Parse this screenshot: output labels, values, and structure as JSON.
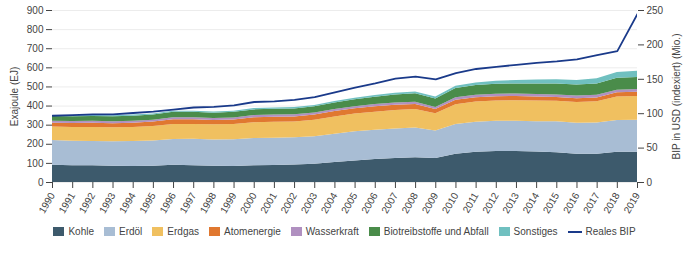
{
  "chart_data": {
    "type": "area",
    "stacked": true,
    "x": [
      1990,
      1991,
      1992,
      1993,
      1994,
      1995,
      1996,
      1997,
      1998,
      1999,
      2000,
      2001,
      2002,
      2003,
      2004,
      2005,
      2006,
      2007,
      2008,
      2009,
      2010,
      2011,
      2012,
      2013,
      2014,
      2015,
      2016,
      2017,
      2018,
      2019
    ],
    "xlim": [
      1990,
      2019
    ],
    "xticks": [
      1990,
      1991,
      1992,
      1993,
      1994,
      1995,
      1996,
      1997,
      1998,
      1999,
      2000,
      2001,
      2002,
      2003,
      2004,
      2005,
      2006,
      2007,
      2008,
      2009,
      2010,
      2011,
      2012,
      2013,
      2014,
      2015,
      2016,
      2017,
      2018,
      2019
    ],
    "ylabel": "Exajoule (EJ)",
    "ylim": [
      0,
      900
    ],
    "yticks": [
      0,
      100,
      200,
      300,
      400,
      500,
      600,
      700,
      800,
      900
    ],
    "y2label": "BIP in USD (indexiert) (Mio.)",
    "y2lim": [
      0,
      250
    ],
    "y2ticks": [
      0,
      50,
      100,
      150,
      200,
      250
    ],
    "grid": true,
    "legend": "bottom",
    "series": [
      {
        "name": "Kohle",
        "color": "#3d5a6c",
        "values": [
          90,
          88,
          87,
          85,
          84,
          85,
          90,
          88,
          85,
          84,
          87,
          89,
          91,
          96,
          105,
          113,
          120,
          125,
          130,
          125,
          148,
          158,
          162,
          162,
          160,
          156,
          148,
          148,
          158,
          158
        ]
      },
      {
        "name": "Erdöl",
        "color": "#a8bdd4",
        "values": [
          130,
          128,
          128,
          128,
          130,
          132,
          135,
          138,
          138,
          140,
          143,
          143,
          143,
          143,
          148,
          152,
          153,
          155,
          155,
          145,
          155,
          157,
          158,
          158,
          158,
          162,
          162,
          163,
          167,
          168
        ]
      },
      {
        "name": "Erdgas",
        "color": "#f0c060",
        "values": [
          70,
          72,
          73,
          73,
          74,
          76,
          79,
          78,
          79,
          79,
          83,
          83,
          82,
          87,
          90,
          93,
          95,
          97,
          97,
          90,
          104,
          106,
          107,
          108,
          108,
          107,
          108,
          111,
          122,
          124
        ]
      },
      {
        "name": "Atomenergie",
        "color": "#e07830",
        "values": [
          20,
          21,
          22,
          22,
          22,
          23,
          24,
          24,
          23,
          24,
          26,
          27,
          27,
          27,
          28,
          28,
          29,
          27,
          26,
          22,
          24,
          22,
          22,
          22,
          22,
          20,
          20,
          20,
          22,
          22
        ]
      },
      {
        "name": "Wasserkraft",
        "color": "#b090c0",
        "values": [
          10,
          10,
          10,
          10,
          10,
          10,
          11,
          11,
          10,
          11,
          11,
          11,
          11,
          11,
          11,
          11,
          11,
          12,
          12,
          11,
          13,
          13,
          13,
          13,
          13,
          13,
          14,
          14,
          14,
          15
        ]
      },
      {
        "name": "Biotreibstoffe und Abfall",
        "color": "#4a8c4a",
        "values": [
          25,
          25,
          26,
          26,
          27,
          27,
          28,
          28,
          28,
          29,
          30,
          30,
          31,
          32,
          34,
          36,
          38,
          42,
          44,
          44,
          48,
          51,
          52,
          53,
          55,
          57,
          58,
          60,
          62,
          63
        ]
      },
      {
        "name": "Sonstiges",
        "color": "#70c0c0",
        "values": [
          5,
          5,
          5,
          5,
          6,
          6,
          6,
          6,
          6,
          6,
          7,
          7,
          7,
          7,
          8,
          8,
          9,
          9,
          10,
          10,
          12,
          14,
          16,
          18,
          20,
          22,
          24,
          27,
          30,
          32
        ]
      },
      {
        "name": "Reales BIP",
        "color": "#1a3a8a",
        "type": "line",
        "axis": "y2",
        "values": [
          97,
          98,
          99,
          99,
          101,
          103,
          106,
          109,
          110,
          112,
          117,
          118,
          120,
          124,
          131,
          138,
          144,
          151,
          154,
          150,
          159,
          165,
          168,
          171,
          174,
          176,
          179,
          185,
          191,
          245
        ]
      }
    ]
  }
}
